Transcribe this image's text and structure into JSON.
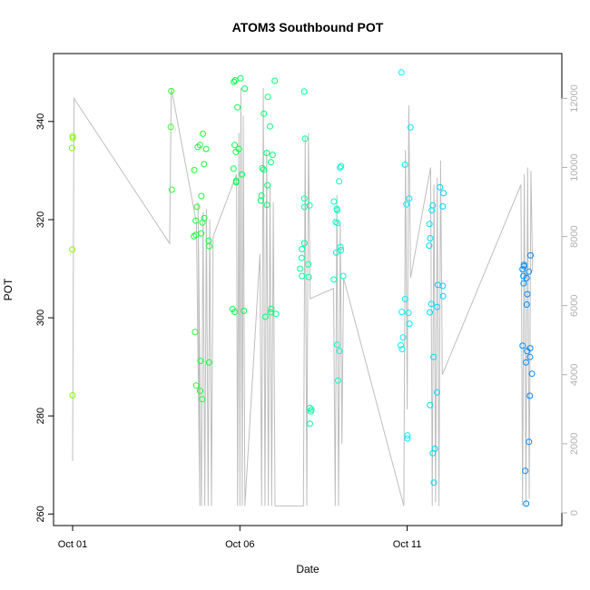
{
  "chart_data": {
    "type": "scatter",
    "title": "ATOM3 Southbound POT",
    "xlabel": "Date",
    "ylabel": "POT",
    "x_ticks": [
      "Oct 01",
      "Oct 06",
      "Oct 11"
    ],
    "y_ticks": [
      260,
      280,
      300,
      320,
      340
    ],
    "y2_ticks": [
      0,
      2000,
      4000,
      6000,
      8000,
      10000,
      12000
    ],
    "xlim_days": [
      0.0,
      14.0
    ],
    "ylim": [
      259.5,
      352.0
    ],
    "y2lim": [
      0,
      12300
    ],
    "grid": false,
    "points_color_gradient": [
      "#80ff00",
      "#00ff40",
      "#00ffff",
      "#0080ff"
    ],
    "line_color": "#bebebe",
    "right_axis_color": "#b0b0b0",
    "point_clusters": [
      {
        "day": 0.0,
        "spread": 0.02,
        "values": [
          337.0,
          336.6,
          334.6,
          313.9,
          284.2
        ]
      },
      {
        "day": 2.95,
        "spread": 0.02,
        "values": [
          346.2,
          338.9,
          326.1
        ]
      },
      {
        "day": 3.85,
        "spread": 0.25,
        "values": [
          337.5,
          335.2,
          334.8,
          334.4,
          331.3,
          330.1,
          324.8,
          322.6,
          320.3,
          319.8,
          319.4,
          317.2,
          316.9,
          316.6,
          315.7,
          314.6,
          297.1,
          291.2,
          290.9,
          286.2,
          285.1,
          283.4
        ]
      },
      {
        "day": 4.95,
        "spread": 0.2,
        "values": [
          348.8,
          348.4,
          348.1,
          346.7,
          342.9,
          335.2,
          334.4,
          333.8,
          330.4,
          329.2,
          327.9,
          327.6,
          301.8,
          301.4,
          301.2
        ]
      },
      {
        "day": 5.85,
        "spread": 0.25,
        "values": [
          348.3,
          345.0,
          341.6,
          339.0,
          333.6,
          333.2,
          331.7,
          330.5,
          330.2,
          327.0,
          324.9,
          323.9,
          323.0,
          301.8,
          301.1,
          300.8,
          300.2
        ]
      },
      {
        "day": 6.95,
        "spread": 0.2,
        "values": [
          346.1,
          336.5,
          324.3,
          322.9,
          322.6,
          315.2,
          314.0,
          312.2,
          310.9,
          310.0,
          308.5,
          308.3,
          281.6,
          281.3,
          280.9,
          278.4
        ]
      },
      {
        "day": 7.95,
        "spread": 0.15,
        "values": [
          330.9,
          330.6,
          327.8,
          323.7,
          322.2,
          321.9,
          319.5,
          319.3,
          314.4,
          313.8,
          313.3,
          308.5,
          307.8,
          294.5,
          293.2,
          287.2
        ]
      },
      {
        "day": 9.95,
        "spread": 0.15,
        "values": [
          350.0,
          338.8,
          331.2,
          324.3,
          323.1,
          303.8,
          301.2,
          301.0,
          298.8,
          296.0,
          294.4,
          293.6,
          276.0,
          275.4
        ]
      },
      {
        "day": 10.9,
        "spread": 0.25,
        "values": [
          326.6,
          325.4,
          322.9,
          322.7,
          321.9,
          319.1,
          316.2,
          314.7,
          306.7,
          306.5,
          304.4,
          302.8,
          302.2,
          301.1,
          292.0,
          284.8,
          282.2,
          273.3,
          272.4,
          266.4
        ]
      },
      {
        "day": 13.6,
        "spread": 0.15,
        "values": [
          312.7,
          310.8,
          310.5,
          309.9,
          309.4,
          308.5,
          308.1,
          307.0,
          304.8,
          302.7,
          294.3,
          293.8,
          293.2,
          292.0,
          290.9,
          288.6,
          284.1,
          274.7,
          268.8,
          262.1
        ]
      }
    ],
    "secondary_line": [
      [
        0.0,
        1500
      ],
      [
        0.04,
        12000
      ],
      [
        2.9,
        7800
      ],
      [
        2.95,
        12300
      ],
      [
        3.7,
        8400
      ],
      [
        3.8,
        200
      ],
      [
        3.75,
        9000
      ],
      [
        3.85,
        200
      ],
      [
        3.9,
        8700
      ],
      [
        3.95,
        200
      ],
      [
        4.0,
        8800
      ],
      [
        4.05,
        200
      ],
      [
        4.1,
        8500
      ],
      [
        4.15,
        200
      ],
      [
        4.2,
        8000
      ],
      [
        4.9,
        9800
      ],
      [
        4.93,
        200
      ],
      [
        4.97,
        11000
      ],
      [
        5.0,
        200
      ],
      [
        5.03,
        12300
      ],
      [
        5.07,
        200
      ],
      [
        5.1,
        11500
      ],
      [
        5.15,
        200
      ],
      [
        5.6,
        7500
      ],
      [
        5.65,
        200
      ],
      [
        5.7,
        12300
      ],
      [
        5.75,
        200
      ],
      [
        5.8,
        10500
      ],
      [
        5.85,
        200
      ],
      [
        5.9,
        9500
      ],
      [
        5.95,
        200
      ],
      [
        6.0,
        9000
      ],
      [
        6.05,
        200
      ],
      [
        6.9,
        200
      ],
      [
        6.95,
        10900
      ],
      [
        7.0,
        200
      ],
      [
        7.05,
        11000
      ],
      [
        7.1,
        6200
      ],
      [
        7.8,
        6500
      ],
      [
        7.85,
        200
      ],
      [
        7.9,
        9200
      ],
      [
        7.95,
        200
      ],
      [
        8.0,
        8400
      ],
      [
        8.05,
        2000
      ],
      [
        8.1,
        6800
      ],
      [
        9.9,
        200
      ],
      [
        9.95,
        10500
      ],
      [
        10.0,
        3000
      ],
      [
        10.05,
        11800
      ],
      [
        10.1,
        6800
      ],
      [
        10.7,
        10000
      ],
      [
        10.75,
        200
      ],
      [
        10.8,
        9500
      ],
      [
        10.85,
        300
      ],
      [
        10.9,
        9700
      ],
      [
        10.95,
        200
      ],
      [
        11.0,
        10200
      ],
      [
        11.05,
        4000
      ],
      [
        13.4,
        9500
      ],
      [
        13.45,
        200
      ],
      [
        13.5,
        9800
      ],
      [
        13.55,
        200
      ],
      [
        13.6,
        10000
      ],
      [
        13.65,
        400
      ],
      [
        13.7,
        9900
      ],
      [
        13.75,
        7000
      ]
    ]
  }
}
